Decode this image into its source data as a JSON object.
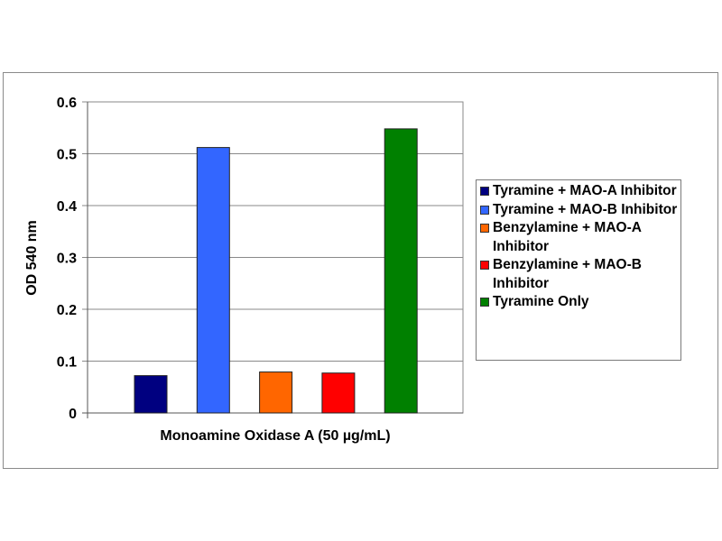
{
  "chart_data": {
    "type": "bar",
    "title": "",
    "xlabel": "Monoamine Oxidase A (50 µg/mL)",
    "ylabel": "OD 540 nm",
    "ylim": [
      0,
      0.6
    ],
    "yticks": [
      "0",
      "0.1",
      "0.2",
      "0.3",
      "0.4",
      "0.5",
      "0.6"
    ],
    "grid": true,
    "legend_position": "right",
    "series": [
      {
        "name": "Tyramine + MAO-A Inhibitor",
        "color": "#000080",
        "value": 0.072
      },
      {
        "name": "Tyramine + MAO-B Inhibitor",
        "color": "#3366ff",
        "value": 0.512
      },
      {
        "name": "Benzylamine + MAO-A Inhibitor",
        "color": "#ff6600",
        "value": 0.079
      },
      {
        "name": "Benzylamine + MAO-B Inhibitor",
        "color": "#ff0000",
        "value": 0.077
      },
      {
        "name": "Tyramine Only",
        "color": "#008000",
        "value": 0.548
      }
    ]
  }
}
